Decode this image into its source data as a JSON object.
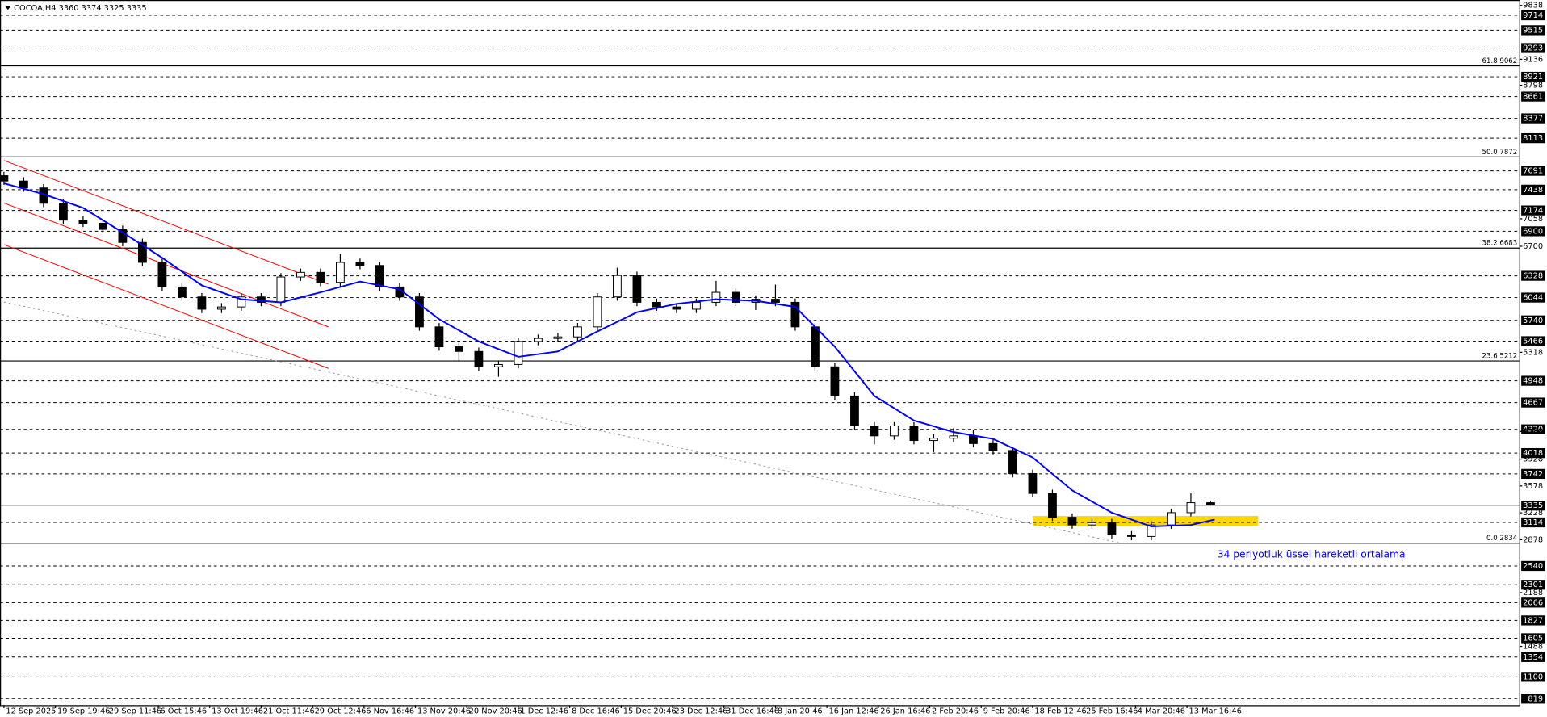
{
  "chart_data": {
    "type": "candlestick",
    "title": "COCOA,H4  3360 3374 3325 3335",
    "x": [
      0,
      5,
      10,
      15,
      20,
      25,
      30,
      35,
      40,
      45,
      50,
      55,
      60,
      65,
      70,
      75,
      80,
      85,
      90,
      95,
      100,
      105,
      110,
      115,
      120,
      125,
      130,
      135,
      140,
      145,
      150,
      155,
      160,
      165,
      170,
      175,
      180,
      185,
      190,
      195,
      200,
      205,
      210,
      215,
      220,
      225,
      230,
      235,
      240,
      245,
      250,
      255,
      260,
      265,
      270,
      275,
      280,
      285,
      290,
      295,
      300,
      305
    ],
    "open": [
      7620,
      7550,
      7460,
      7260,
      7040,
      7000,
      6920,
      6750,
      6490,
      6170,
      6040,
      5880,
      5910,
      6040,
      5970,
      6300,
      6360,
      6230,
      6490,
      6450,
      6170,
      6040,
      5650,
      5390,
      5330,
      5130,
      5160,
      5460,
      5500,
      5520,
      5650,
      6040,
      6320,
      5970,
      5910,
      5880,
      5970,
      6100,
      5970,
      6010,
      5970,
      5650,
      5130,
      4750,
      4360,
      4230,
      4360,
      4170,
      4200,
      4230,
      4130,
      4040,
      3740,
      3480,
      3170,
      3070,
      3100,
      2940,
      2920,
      3070,
      3230,
      3360
    ],
    "high": [
      7670,
      7600,
      7510,
      7310,
      7090,
      7050,
      6970,
      6800,
      6540,
      6220,
      6090,
      5960,
      6090,
      6090,
      6350,
      6410,
      6410,
      6600,
      6540,
      6500,
      6220,
      6090,
      5700,
      5440,
      5380,
      5210,
      5510,
      5550,
      5570,
      5700,
      6090,
      6420,
      6370,
      6020,
      5960,
      6020,
      6250,
      6150,
      6060,
      6200,
      6020,
      5700,
      5180,
      4800,
      4410,
      4410,
      4410,
      4250,
      4330,
      4310,
      4180,
      4090,
      3790,
      3530,
      3220,
      3150,
      3150,
      2990,
      3120,
      3280,
      3480,
      3374
    ],
    "low": [
      7500,
      7410,
      7210,
      6990,
      6950,
      6870,
      6700,
      6440,
      6120,
      5990,
      5830,
      5830,
      5860,
      5920,
      5920,
      6250,
      6180,
      6180,
      6400,
      6120,
      5990,
      5600,
      5340,
      5200,
      5080,
      5000,
      5110,
      5410,
      5450,
      5470,
      5600,
      5990,
      5920,
      5860,
      5830,
      5830,
      5920,
      5920,
      5870,
      5920,
      5600,
      5080,
      4700,
      4310,
      4120,
      4180,
      4120,
      4020,
      4150,
      4080,
      3990,
      3690,
      3430,
      3120,
      3020,
      3020,
      2890,
      2870,
      2870,
      3020,
      3180,
      3325
    ],
    "close": [
      7550,
      7460,
      7260,
      7040,
      7000,
      6920,
      6750,
      6490,
      6170,
      6040,
      5880,
      5910,
      6040,
      5970,
      6300,
      6360,
      6230,
      6490,
      6450,
      6170,
      6040,
      5650,
      5390,
      5330,
      5130,
      5160,
      5460,
      5500,
      5520,
      5650,
      6040,
      6320,
      5970,
      5910,
      5880,
      5970,
      6100,
      5970,
      6010,
      5970,
      5650,
      5130,
      4750,
      4360,
      4230,
      4360,
      4170,
      4200,
      4230,
      4130,
      4040,
      3740,
      3480,
      3170,
      3070,
      3100,
      2940,
      2920,
      3070,
      3230,
      3360,
      3335
    ],
    "candle_colors": {
      "up": "#ffffff",
      "down": "#000000",
      "outline": "#000000"
    },
    "xlim": [
      -1,
      383
    ],
    "xticks": [
      {
        "value": 0,
        "label": "12 Sep 2025"
      },
      {
        "value": 13,
        "label": "19 Sep 19:46"
      },
      {
        "value": 26,
        "label": "29 Sep 11:46"
      },
      {
        "value": 39,
        "label": "6 Oct 15:46"
      },
      {
        "value": 52,
        "label": "13 Oct 19:46"
      },
      {
        "value": 65,
        "label": "21 Oct 11:46"
      },
      {
        "value": 78,
        "label": "29 Oct 12:46"
      },
      {
        "value": 91,
        "label": "6 Nov 16:46"
      },
      {
        "value": 104,
        "label": "13 Nov 20:46"
      },
      {
        "value": 117,
        "label": "20 Nov 20:46"
      },
      {
        "value": 130,
        "label": "1 Dec 12:46"
      },
      {
        "value": 143,
        "label": "8 Dec 16:46"
      },
      {
        "value": 156,
        "label": "15 Dec 20:46"
      },
      {
        "value": 169,
        "label": "23 Dec 12:46"
      },
      {
        "value": 182,
        "label": "31 Dec 16:46"
      },
      {
        "value": 195,
        "label": "8 Jan 20:46"
      },
      {
        "value": 208,
        "label": "16 Jan 12:46"
      },
      {
        "value": 221,
        "label": "26 Jan 16:46"
      },
      {
        "value": 234,
        "label": "2 Feb 20:46"
      },
      {
        "value": 247,
        "label": "9 Feb 20:46"
      },
      {
        "value": 260,
        "label": "18 Feb 12:46"
      },
      {
        "value": 273,
        "label": "25 Feb 16:46"
      },
      {
        "value": 286,
        "label": "4 Mar 20:46"
      },
      {
        "value": 299,
        "label": "13 Mar 16:46"
      }
    ],
    "ylim": [
      723,
      9908
    ],
    "yticks": [
      9838,
      9136,
      8798,
      7058,
      6700,
      5318,
      4288,
      3928,
      3578,
      3228,
      2878,
      2188,
      1488
    ],
    "levels": [
      9714,
      9515,
      9293,
      8921,
      8661,
      8377,
      8113,
      7691,
      7438,
      7174,
      6900,
      6328,
      6044,
      5740,
      5466,
      4948,
      4667,
      4320,
      4018,
      3742,
      3114,
      2540,
      2301,
      2066,
      1827,
      1605,
      1354,
      1100,
      819
    ],
    "fib": [
      {
        "value": 9062,
        "label": "61.8 9062"
      },
      {
        "value": 7872,
        "label": "50.0 7872"
      },
      {
        "value": 6683,
        "label": "38.2 6683"
      },
      {
        "value": 5212,
        "label": "23.6 5212"
      },
      {
        "value": 2834,
        "label": "0.0 2834"
      }
    ],
    "current_price": 3335,
    "ema": {
      "name": "34 periyotluk üssel hareketli ortalama",
      "color": "#0000ff",
      "x": [
        0,
        10,
        20,
        30,
        40,
        50,
        60,
        70,
        80,
        90,
        100,
        110,
        120,
        130,
        140,
        150,
        160,
        170,
        180,
        190,
        200,
        210,
        220,
        230,
        240,
        250,
        260,
        270,
        280,
        290,
        300,
        306
      ],
      "values": [
        7520,
        7380,
        7200,
        6880,
        6550,
        6190,
        6010,
        5970,
        6100,
        6240,
        6140,
        5750,
        5460,
        5260,
        5330,
        5590,
        5840,
        5950,
        6010,
        5990,
        5910,
        5390,
        4750,
        4430,
        4280,
        4190,
        3950,
        3520,
        3230,
        3050,
        3070,
        3140
      ]
    },
    "channel": {
      "color": "#ff0000",
      "lines": [
        {
          "x": [
            0,
            82
          ],
          "values": [
            7818,
            6205
          ]
        },
        {
          "x": [
            0,
            82
          ],
          "values": [
            7263,
            5650
          ]
        },
        {
          "x": [
            0,
            82
          ],
          "values": [
            6721,
            5109
          ]
        }
      ]
    },
    "trendline": {
      "color": "#999999",
      "x": [
        0,
        282
      ],
      "values": [
        5973,
        2838
      ]
    },
    "zone": {
      "color": "#ffd700",
      "x": [
        260,
        317
      ],
      "values": [
        3187,
        3058
      ]
    }
  }
}
